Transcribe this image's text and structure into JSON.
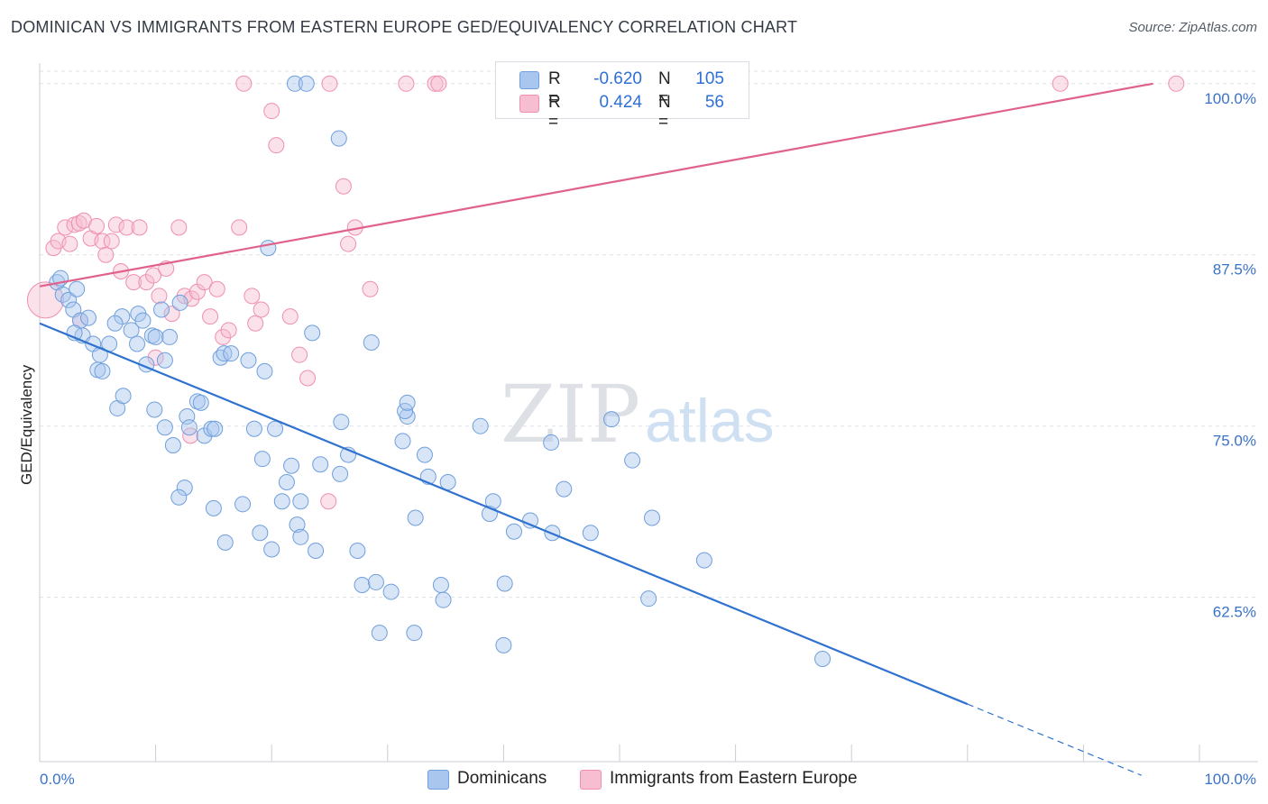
{
  "header": {
    "title": "DOMINICAN VS IMMIGRANTS FROM EASTERN EUROPE GED/EQUIVALENCY CORRELATION CHART",
    "source": "Source: ZipAtlas.com"
  },
  "watermark": {
    "zip": "ZIP",
    "atlas": "atlas"
  },
  "stats": {
    "rows": [
      {
        "r_label": "R =",
        "r_value": "-0.620",
        "n_label": "N =",
        "n_value": "105",
        "color": "#a9c6ee",
        "border": "#6f9fdc"
      },
      {
        "r_label": "R =",
        "r_value": "0.424",
        "n_label": "N =",
        "n_value": "56",
        "color": "#f7bdd0",
        "border": "#ee8fb0"
      }
    ]
  },
  "legend": {
    "items": [
      {
        "label": "Dominicans",
        "color": "#a9c6ee",
        "border": "#6f9fdc"
      },
      {
        "label": "Immigrants from Eastern Europe",
        "color": "#f7bdd0",
        "border": "#ee8fb0"
      }
    ]
  },
  "chart_data": {
    "type": "scatter",
    "title": "DOMINICAN VS IMMIGRANTS FROM EASTERN EUROPE GED/EQUIVALENCY CORRELATION CHART",
    "xlabel": "",
    "ylabel": "GED/Equivalency",
    "xlim": [
      0,
      100
    ],
    "ylim": [
      50.5,
      101.5
    ],
    "x_tick_labels": [
      "0.0%",
      "100.0%"
    ],
    "y_ticks": [
      62.5,
      75.0,
      87.5,
      100.0
    ],
    "y_tick_labels": [
      "62.5%",
      "75.0%",
      "87.5%",
      "100.0%"
    ],
    "grid": true,
    "legend_position": "bottom-center",
    "colors": {
      "dominicans": "#6f9fdc",
      "eastern_europe": "#ee8fb0",
      "trend_blue": "#2f72d0",
      "trend_pink": "#e0618b",
      "axis_text": "#3a72c9"
    },
    "series": [
      {
        "name": "Dominicans",
        "trend": {
          "x": [
            0,
            80
          ],
          "y": [
            82.5,
            54.7
          ],
          "dashed_to": [
            95,
            49.5
          ]
        },
        "points": [
          [
            1.5,
            85.5
          ],
          [
            2.0,
            84.6
          ],
          [
            2.5,
            84.2
          ],
          [
            2.9,
            83.5
          ],
          [
            3.2,
            85.0
          ],
          [
            1.8,
            85.8
          ],
          [
            3.5,
            82.7
          ],
          [
            4.2,
            82.9
          ],
          [
            3.7,
            81.6
          ],
          [
            4.6,
            81.0
          ],
          [
            5.2,
            80.2
          ],
          [
            5.0,
            79.1
          ],
          [
            5.4,
            79.0
          ],
          [
            7.1,
            83.0
          ],
          [
            6.5,
            82.5
          ],
          [
            7.9,
            82.0
          ],
          [
            8.5,
            83.2
          ],
          [
            8.9,
            82.7
          ],
          [
            9.2,
            79.5
          ],
          [
            9.7,
            81.6
          ],
          [
            10.0,
            81.5
          ],
          [
            10.8,
            79.8
          ],
          [
            11.2,
            81.5
          ],
          [
            12.1,
            84.0
          ],
          [
            6.7,
            76.3
          ],
          [
            7.2,
            77.2
          ],
          [
            9.9,
            76.2
          ],
          [
            10.8,
            74.9
          ],
          [
            11.5,
            73.6
          ],
          [
            12.7,
            75.7
          ],
          [
            12.9,
            74.9
          ],
          [
            13.6,
            76.8
          ],
          [
            13.9,
            76.7
          ],
          [
            14.2,
            74.3
          ],
          [
            14.8,
            74.8
          ],
          [
            15.1,
            74.8
          ],
          [
            15.6,
            80.0
          ],
          [
            15.9,
            80.3
          ],
          [
            16.5,
            80.3
          ],
          [
            18.0,
            79.8
          ],
          [
            18.5,
            74.8
          ],
          [
            19.2,
            72.6
          ],
          [
            19.4,
            79.0
          ],
          [
            19.7,
            88.0
          ],
          [
            20.3,
            74.8
          ],
          [
            20.9,
            69.5
          ],
          [
            21.7,
            72.1
          ],
          [
            21.3,
            70.9
          ],
          [
            22.5,
            69.5
          ],
          [
            22.2,
            67.8
          ],
          [
            23.5,
            81.8
          ],
          [
            24.2,
            72.2
          ],
          [
            25.9,
            71.5
          ],
          [
            26.0,
            75.3
          ],
          [
            26.6,
            72.9
          ],
          [
            27.4,
            65.9
          ],
          [
            28.6,
            81.1
          ],
          [
            27.8,
            63.4
          ],
          [
            29.0,
            63.6
          ],
          [
            29.3,
            59.9
          ],
          [
            30.3,
            62.9
          ],
          [
            31.7,
            75.7
          ],
          [
            31.3,
            73.9
          ],
          [
            31.5,
            76.1
          ],
          [
            31.7,
            76.7
          ],
          [
            32.3,
            59.9
          ],
          [
            32.4,
            68.3
          ],
          [
            33.2,
            72.9
          ],
          [
            33.5,
            71.3
          ],
          [
            34.6,
            63.4
          ],
          [
            34.8,
            62.3
          ],
          [
            35.2,
            70.9
          ],
          [
            38.0,
            75.0
          ],
          [
            38.8,
            68.6
          ],
          [
            39.1,
            69.5
          ],
          [
            40.0,
            59.0
          ],
          [
            40.1,
            63.5
          ],
          [
            40.9,
            67.3
          ],
          [
            42.3,
            68.1
          ],
          [
            44.2,
            67.2
          ],
          [
            44.1,
            73.8
          ],
          [
            45.2,
            70.4
          ],
          [
            47.5,
            67.2
          ],
          [
            49.3,
            75.5
          ],
          [
            51.1,
            72.5
          ],
          [
            52.5,
            62.4
          ],
          [
            52.8,
            68.3
          ],
          [
            57.3,
            65.2
          ],
          [
            67.5,
            58.0
          ],
          [
            22.5,
            66.9
          ],
          [
            23.8,
            65.9
          ],
          [
            20.0,
            66.0
          ],
          [
            19.0,
            67.2
          ],
          [
            16.0,
            66.5
          ],
          [
            15.0,
            69.0
          ],
          [
            12.5,
            70.5
          ],
          [
            12.0,
            69.8
          ],
          [
            17.5,
            69.3
          ],
          [
            22.0,
            100.0
          ],
          [
            23.0,
            100.0
          ],
          [
            25.8,
            96.0
          ],
          [
            8.4,
            81.0
          ],
          [
            6.0,
            81.0
          ],
          [
            3.0,
            81.8
          ],
          [
            10.5,
            83.5
          ]
        ]
      },
      {
        "name": "Immigrants from Eastern Europe",
        "trend": {
          "x": [
            0,
            96
          ],
          "y": [
            85.2,
            100.0
          ]
        },
        "points": [
          [
            0.5,
            84.2
          ],
          [
            1.2,
            88.0
          ],
          [
            1.6,
            88.5
          ],
          [
            2.2,
            89.5
          ],
          [
            2.6,
            88.3
          ],
          [
            3.0,
            89.7
          ],
          [
            3.4,
            89.8
          ],
          [
            3.8,
            90.0
          ],
          [
            4.4,
            88.7
          ],
          [
            4.9,
            89.6
          ],
          [
            5.4,
            88.5
          ],
          [
            5.7,
            87.5
          ],
          [
            6.2,
            88.5
          ],
          [
            6.6,
            89.7
          ],
          [
            7.0,
            86.3
          ],
          [
            7.5,
            89.5
          ],
          [
            8.1,
            85.5
          ],
          [
            8.6,
            89.5
          ],
          [
            9.2,
            85.5
          ],
          [
            9.8,
            86.0
          ],
          [
            10.3,
            84.5
          ],
          [
            10.9,
            86.5
          ],
          [
            11.4,
            83.2
          ],
          [
            12.0,
            89.5
          ],
          [
            12.5,
            84.5
          ],
          [
            13.1,
            84.3
          ],
          [
            13.6,
            84.8
          ],
          [
            14.2,
            85.5
          ],
          [
            14.7,
            83.0
          ],
          [
            15.3,
            85.0
          ],
          [
            15.8,
            81.5
          ],
          [
            16.3,
            82.0
          ],
          [
            17.2,
            89.5
          ],
          [
            18.3,
            84.5
          ],
          [
            18.6,
            82.5
          ],
          [
            19.1,
            83.5
          ],
          [
            20.0,
            98.0
          ],
          [
            20.4,
            95.5
          ],
          [
            21.6,
            83.0
          ],
          [
            22.4,
            80.2
          ],
          [
            23.1,
            78.5
          ],
          [
            24.9,
            69.5
          ],
          [
            26.6,
            88.3
          ],
          [
            27.2,
            89.5
          ],
          [
            28.5,
            85.0
          ],
          [
            17.6,
            100.0
          ],
          [
            26.2,
            92.5
          ],
          [
            25.0,
            100.0
          ],
          [
            31.6,
            100.0
          ],
          [
            34.1,
            100.0
          ],
          [
            34.4,
            100.0
          ],
          [
            88.0,
            100.0
          ],
          [
            98.0,
            100.0
          ],
          [
            10.0,
            80.0
          ],
          [
            13.0,
            74.3
          ],
          [
            3.5,
            82.7
          ]
        ]
      }
    ]
  }
}
